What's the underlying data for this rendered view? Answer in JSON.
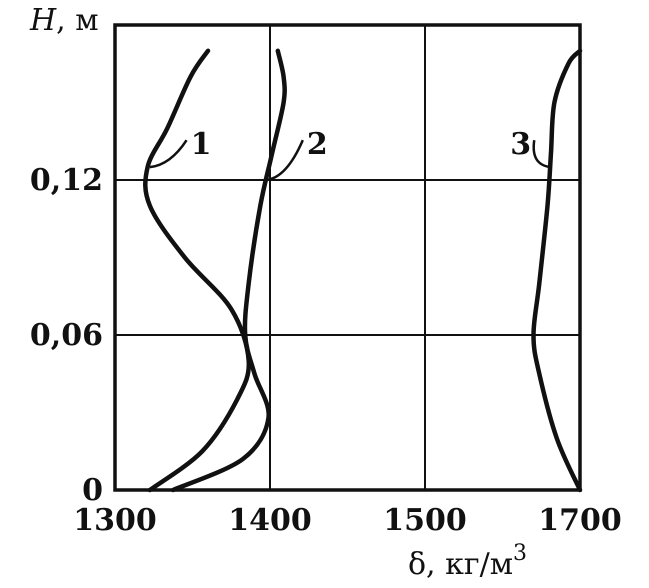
{
  "chart_data": {
    "type": "line",
    "xlabel": "δ, кг/м",
    "xlabel_sup": "3",
    "ylabel": "H",
    "ylabel_unit": ", м",
    "xlim": [
      1300,
      1700
    ],
    "ylim": [
      0,
      0.18
    ],
    "x_ticks": [
      "1300",
      "1400",
      "1500",
      "1700"
    ],
    "y_ticks": [
      {
        "value": 0,
        "label": "0"
      },
      {
        "value": 0.06,
        "label": "0,06"
      },
      {
        "value": 0.12,
        "label": "0,12"
      }
    ],
    "grid": true,
    "series": [
      {
        "name": "1",
        "points": [
          [
            1330,
            0
          ],
          [
            1375,
            0.015
          ],
          [
            1405,
            0.035
          ],
          [
            1415,
            0.05
          ],
          [
            1400,
            0.07
          ],
          [
            1360,
            0.09
          ],
          [
            1330,
            0.11
          ],
          [
            1328,
            0.125
          ],
          [
            1345,
            0.14
          ],
          [
            1365,
            0.16
          ],
          [
            1380,
            0.17
          ]
        ]
      },
      {
        "name": "2",
        "points": [
          [
            1350,
            0
          ],
          [
            1410,
            0.012
          ],
          [
            1432,
            0.028
          ],
          [
            1420,
            0.045
          ],
          [
            1412,
            0.06
          ],
          [
            1415,
            0.08
          ],
          [
            1425,
            0.11
          ],
          [
            1435,
            0.13
          ],
          [
            1445,
            0.15
          ],
          [
            1445,
            0.16
          ],
          [
            1440,
            0.17
          ]
        ]
      },
      {
        "name": "3",
        "points": [
          [
            1700,
            0
          ],
          [
            1680,
            0.02
          ],
          [
            1665,
            0.045
          ],
          [
            1660,
            0.06
          ],
          [
            1665,
            0.08
          ],
          [
            1672,
            0.11
          ],
          [
            1675,
            0.13
          ],
          [
            1678,
            0.15
          ],
          [
            1690,
            0.165
          ],
          [
            1700,
            0.17
          ]
        ]
      }
    ]
  }
}
